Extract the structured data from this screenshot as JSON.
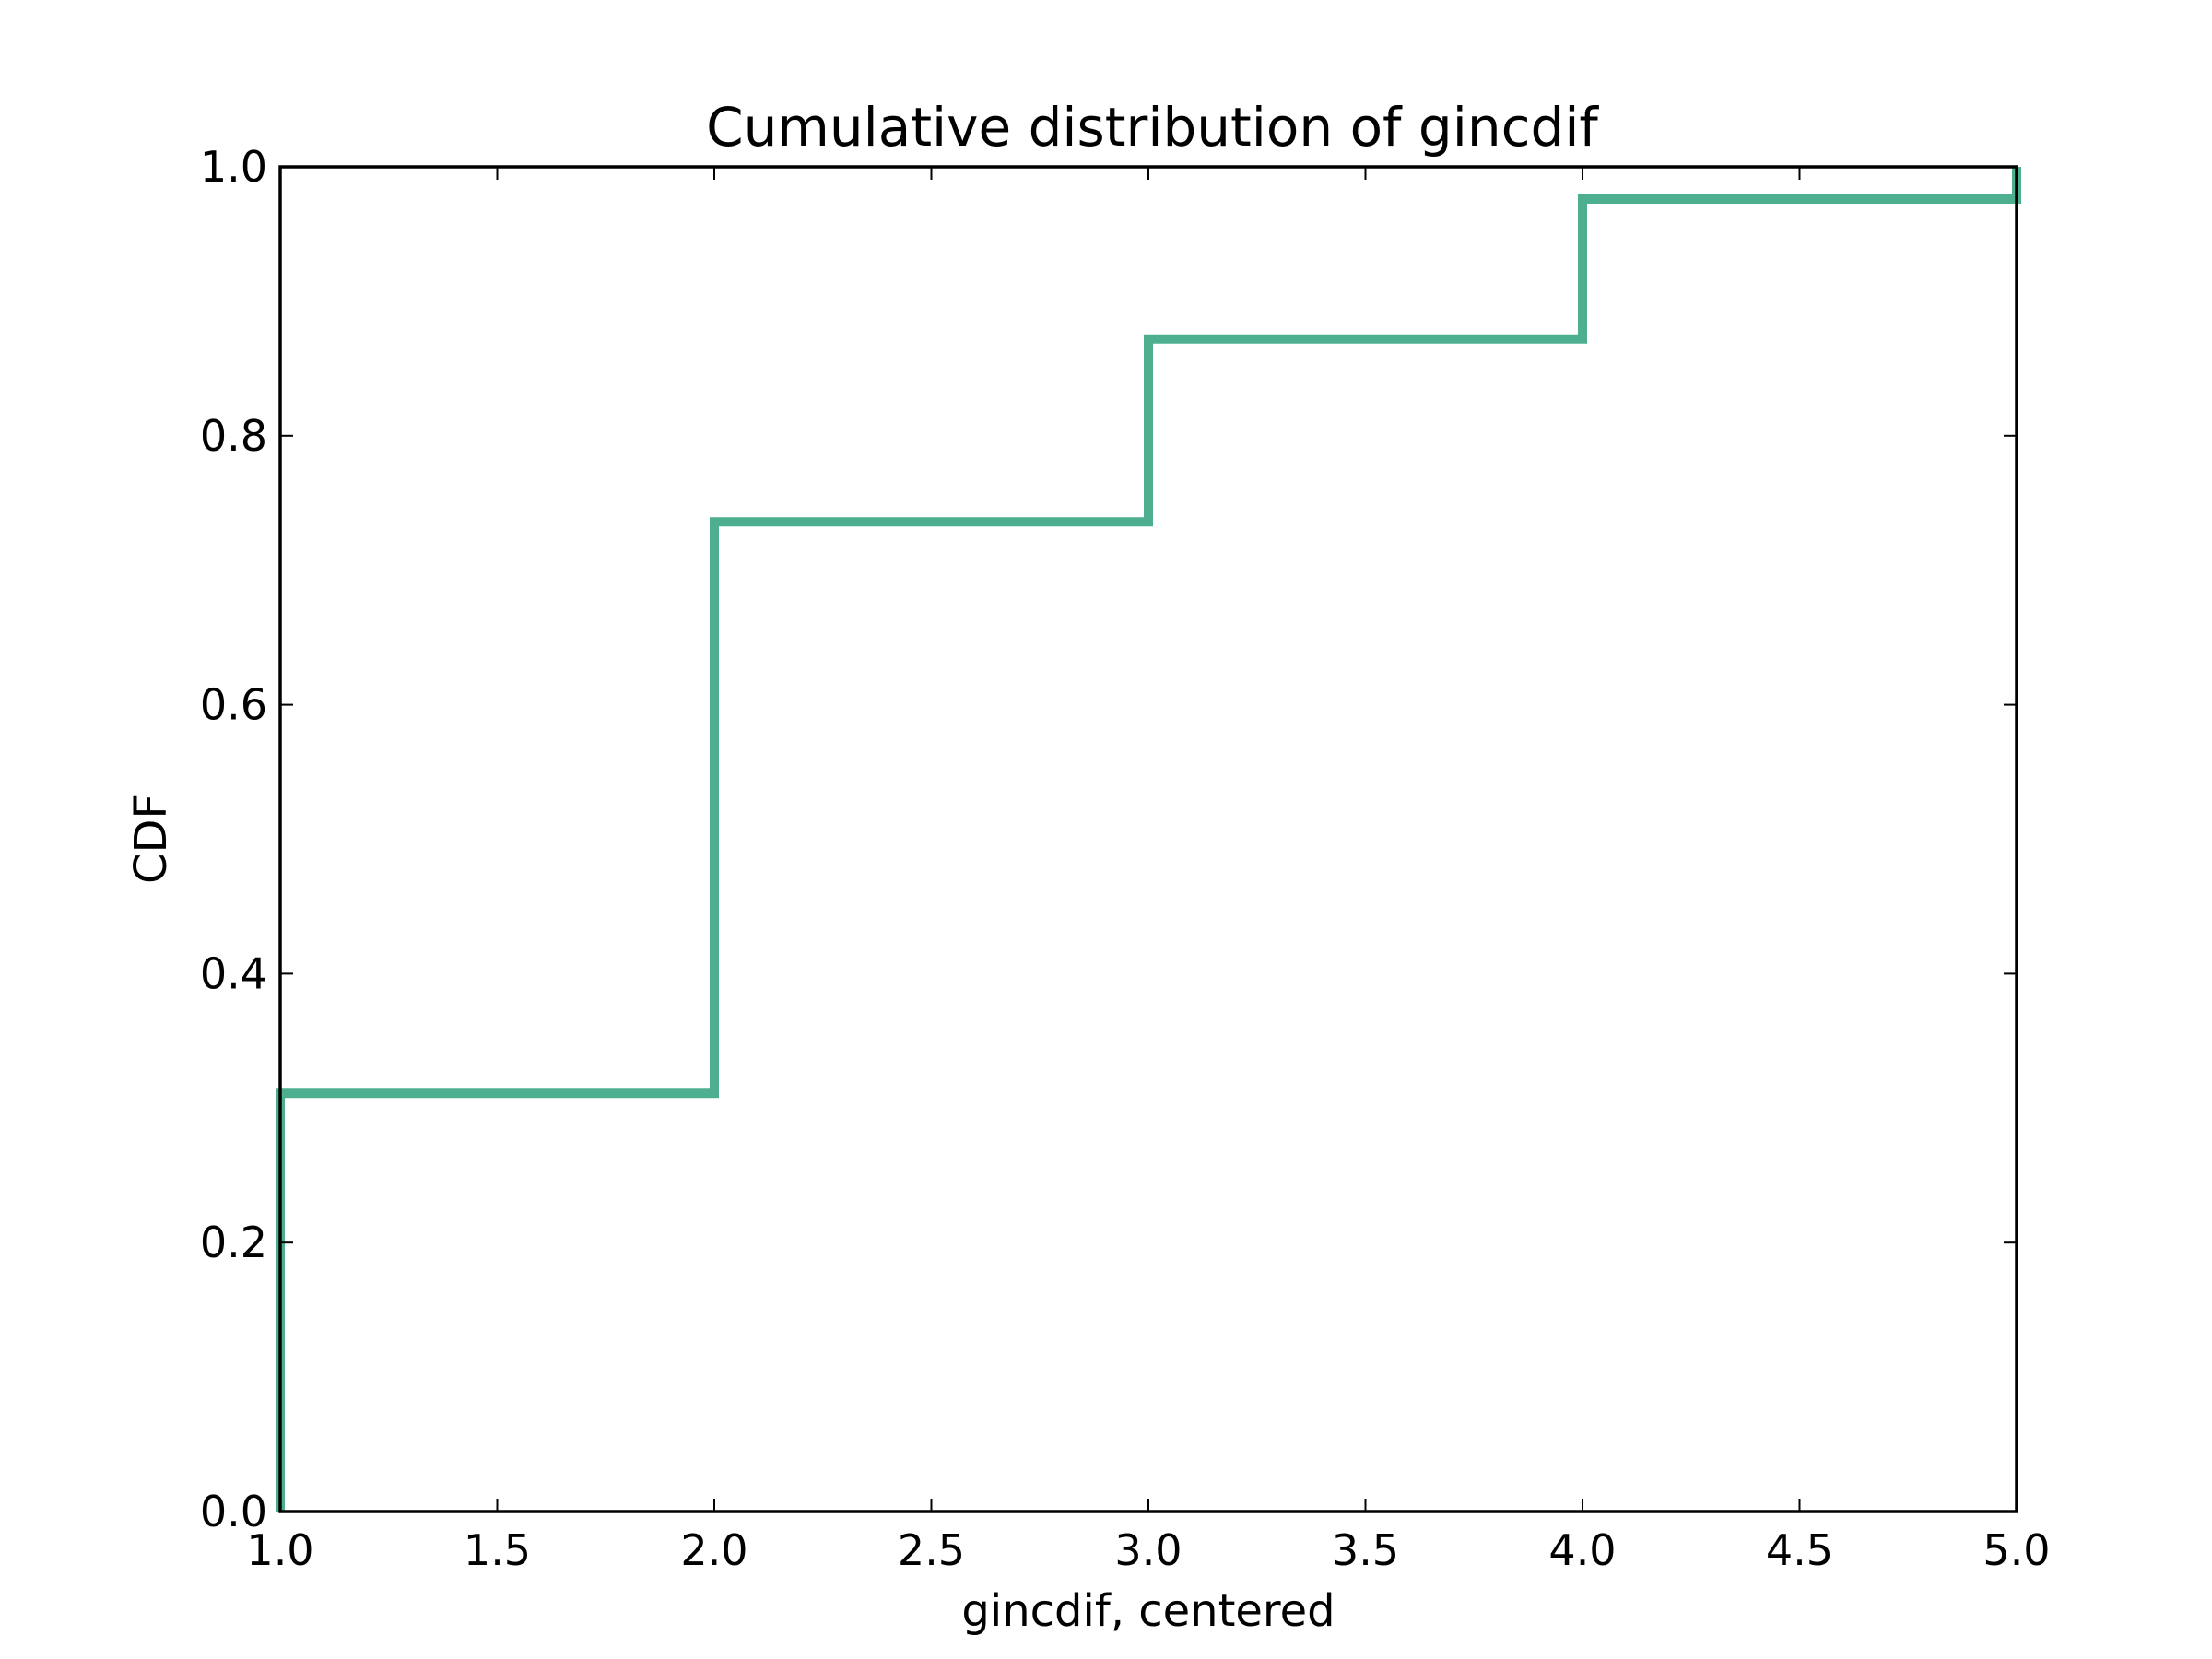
{
  "chart_data": {
    "type": "line",
    "step": true,
    "title": "Cumulative distribution of gincdif",
    "xlabel": "gincdif, centered",
    "ylabel": "CDF",
    "xlim": [
      1.0,
      5.0
    ],
    "ylim": [
      0.0,
      1.0
    ],
    "xticks": [
      "1.0",
      "1.5",
      "2.0",
      "2.5",
      "3.0",
      "3.5",
      "4.0",
      "4.5",
      "5.0"
    ],
    "yticks": [
      "0.0",
      "0.2",
      "0.4",
      "0.6",
      "0.8",
      "1.0"
    ],
    "grid": false,
    "series": [
      {
        "color": "#4daf8f",
        "x": [
          1.0,
          1.0,
          2.0,
          2.0,
          3.0,
          3.0,
          4.0,
          4.0,
          5.0,
          5.0
        ],
        "y": [
          0.0,
          0.311,
          0.311,
          0.736,
          0.736,
          0.872,
          0.872,
          0.976,
          0.976,
          1.0
        ]
      }
    ]
  }
}
